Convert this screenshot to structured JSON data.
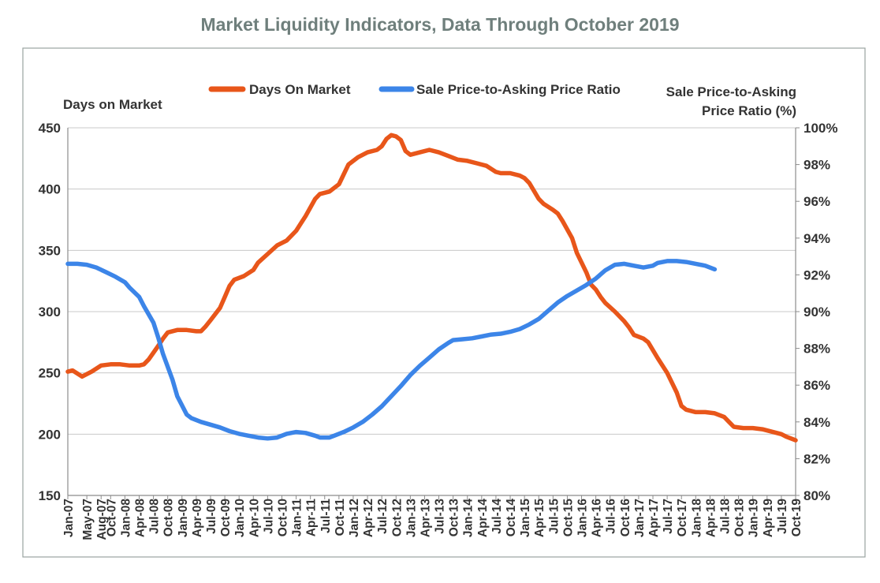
{
  "chart_data": {
    "type": "line",
    "title": "Market Liquidity Indicators, Data Through October 2019",
    "left_axis_label": "Days on Market",
    "right_axis_label": [
      "Sale Price-to-Asking",
      "Price Ratio (%)"
    ],
    "left_ylim": [
      150,
      450
    ],
    "left_ticks": [
      "150",
      "200",
      "250",
      "300",
      "350",
      "400",
      "450"
    ],
    "right_ylim": [
      80,
      100
    ],
    "right_ticks": [
      "80%",
      "82%",
      "84%",
      "86%",
      "88%",
      "90%",
      "92%",
      "94%",
      "96%",
      "98%",
      "100%"
    ],
    "x_range": [
      0,
      153
    ],
    "x_tick_labels": [
      "Jan-07",
      "May-07",
      "Aug-07",
      "Oct-07",
      "Jan-08",
      "Apr-08",
      "Jul-08",
      "Oct-08",
      "Jan-09",
      "Apr-09",
      "Jul-09",
      "Oct-09",
      "Jan-10",
      "Apr-10",
      "Jul-10",
      "Oct-10",
      "Jan-11",
      "Apr-11",
      "Jul-11",
      "Oct-11",
      "Jan-12",
      "Apr-12",
      "Jul-12",
      "Oct-12",
      "Jan-13",
      "Apr-13",
      "Jul-13",
      "Oct-13",
      "Jan-14",
      "Apr-14",
      "Jul-14",
      "Oct-14",
      "Jan-15",
      "Apr-15",
      "Jul-15",
      "Oct-15",
      "Jan-16",
      "Apr-16",
      "Jul-16",
      "Oct-16",
      "Jan-17",
      "Apr-17",
      "Jul-17",
      "Oct-17",
      "Jan-18",
      "Apr-18",
      "Jul-18",
      "Oct-18",
      "Jan-19",
      "Apr-19",
      "Jul-19",
      "Oct-19"
    ],
    "x_tick_months": [
      0,
      4,
      7,
      9,
      12,
      15,
      18,
      21,
      24,
      27,
      30,
      33,
      36,
      39,
      42,
      45,
      48,
      51,
      54,
      57,
      60,
      63,
      66,
      69,
      72,
      75,
      78,
      81,
      84,
      87,
      90,
      93,
      96,
      99,
      102,
      105,
      108,
      111,
      114,
      117,
      120,
      123,
      126,
      129,
      132,
      135,
      138,
      141,
      144,
      147,
      150,
      153
    ],
    "legend": [
      "Days On Market",
      "Sale Price-to-Asking Price Ratio"
    ],
    "series": [
      {
        "name": "Days On Market",
        "axis": "left",
        "color": "#e8561a",
        "points": [
          [
            0,
            251
          ],
          [
            1,
            252
          ],
          [
            3,
            247
          ],
          [
            5,
            251
          ],
          [
            7,
            256
          ],
          [
            9,
            257
          ],
          [
            11,
            257
          ],
          [
            13,
            256
          ],
          [
            15,
            256
          ],
          [
            16,
            257
          ],
          [
            17,
            261
          ],
          [
            19,
            272
          ],
          [
            20,
            278
          ],
          [
            21,
            283
          ],
          [
            23,
            285
          ],
          [
            25,
            285
          ],
          [
            27,
            284
          ],
          [
            28,
            284
          ],
          [
            29,
            288
          ],
          [
            30,
            293
          ],
          [
            32,
            303
          ],
          [
            33,
            312
          ],
          [
            34,
            321
          ],
          [
            35,
            326
          ],
          [
            37,
            329
          ],
          [
            39,
            334
          ],
          [
            40,
            340
          ],
          [
            42,
            347
          ],
          [
            44,
            354
          ],
          [
            46,
            358
          ],
          [
            48,
            366
          ],
          [
            50,
            378
          ],
          [
            52,
            392
          ],
          [
            53,
            396
          ],
          [
            55,
            398
          ],
          [
            57,
            404
          ],
          [
            58,
            412
          ],
          [
            59,
            420
          ],
          [
            61,
            426
          ],
          [
            63,
            430
          ],
          [
            65,
            432
          ],
          [
            66,
            435
          ],
          [
            67,
            441
          ],
          [
            68,
            444
          ],
          [
            69,
            443
          ],
          [
            70,
            440
          ],
          [
            71,
            431
          ],
          [
            72,
            428
          ],
          [
            74,
            430
          ],
          [
            76,
            432
          ],
          [
            78,
            430
          ],
          [
            80,
            427
          ],
          [
            82,
            424
          ],
          [
            84,
            423
          ],
          [
            86,
            421
          ],
          [
            88,
            419
          ],
          [
            90,
            414
          ],
          [
            91,
            413
          ],
          [
            93,
            413
          ],
          [
            95,
            411
          ],
          [
            96,
            409
          ],
          [
            97,
            405
          ],
          [
            99,
            392
          ],
          [
            100,
            388
          ],
          [
            102,
            383
          ],
          [
            103,
            380
          ],
          [
            104,
            374
          ],
          [
            106,
            360
          ],
          [
            107,
            348
          ],
          [
            109,
            332
          ],
          [
            110,
            322
          ],
          [
            111,
            318
          ],
          [
            112,
            312
          ],
          [
            113,
            307
          ],
          [
            115,
            300
          ],
          [
            117,
            292
          ],
          [
            118,
            287
          ],
          [
            119,
            281
          ],
          [
            121,
            278
          ],
          [
            122,
            275
          ],
          [
            124,
            262
          ],
          [
            126,
            250
          ],
          [
            128,
            234
          ],
          [
            129,
            223
          ],
          [
            130,
            220
          ],
          [
            132,
            218
          ],
          [
            134,
            218
          ],
          [
            136,
            217
          ],
          [
            138,
            214
          ],
          [
            139,
            210
          ],
          [
            140,
            206
          ],
          [
            142,
            205
          ],
          [
            144,
            205
          ],
          [
            146,
            204
          ],
          [
            148,
            202
          ],
          [
            150,
            200
          ],
          [
            151,
            198
          ],
          [
            153,
            195
          ]
        ]
      },
      {
        "name": "Sale Price-to-Asking Price Ratio",
        "axis": "right",
        "color": "#3c85e8",
        "points": [
          [
            0,
            92.6
          ],
          [
            2,
            92.6
          ],
          [
            4,
            92.55
          ],
          [
            6,
            92.4
          ],
          [
            8,
            92.15
          ],
          [
            10,
            91.9
          ],
          [
            12,
            91.6
          ],
          [
            13,
            91.3
          ],
          [
            15,
            90.8
          ],
          [
            16,
            90.3
          ],
          [
            18,
            89.4
          ],
          [
            19,
            88.6
          ],
          [
            20,
            87.7
          ],
          [
            22,
            86.3
          ],
          [
            23,
            85.4
          ],
          [
            25,
            84.4
          ],
          [
            26,
            84.2
          ],
          [
            28,
            84.0
          ],
          [
            30,
            83.85
          ],
          [
            32,
            83.7
          ],
          [
            34,
            83.5
          ],
          [
            36,
            83.35
          ],
          [
            38,
            83.25
          ],
          [
            40,
            83.15
          ],
          [
            42,
            83.1
          ],
          [
            44,
            83.15
          ],
          [
            46,
            83.35
          ],
          [
            48,
            83.45
          ],
          [
            50,
            83.4
          ],
          [
            52,
            83.25
          ],
          [
            53,
            83.15
          ],
          [
            55,
            83.15
          ],
          [
            56,
            83.25
          ],
          [
            58,
            83.45
          ],
          [
            60,
            83.7
          ],
          [
            62,
            84.0
          ],
          [
            64,
            84.4
          ],
          [
            66,
            84.85
          ],
          [
            68,
            85.4
          ],
          [
            70,
            85.95
          ],
          [
            72,
            86.55
          ],
          [
            74,
            87.05
          ],
          [
            76,
            87.5
          ],
          [
            78,
            87.95
          ],
          [
            80,
            88.3
          ],
          [
            81,
            88.45
          ],
          [
            83,
            88.5
          ],
          [
            85,
            88.55
          ],
          [
            87,
            88.65
          ],
          [
            89,
            88.75
          ],
          [
            91,
            88.8
          ],
          [
            93,
            88.9
          ],
          [
            95,
            89.05
          ],
          [
            97,
            89.3
          ],
          [
            99,
            89.6
          ],
          [
            101,
            90.05
          ],
          [
            103,
            90.5
          ],
          [
            105,
            90.85
          ],
          [
            107,
            91.15
          ],
          [
            109,
            91.45
          ],
          [
            111,
            91.8
          ],
          [
            113,
            92.25
          ],
          [
            115,
            92.55
          ],
          [
            117,
            92.6
          ],
          [
            119,
            92.5
          ],
          [
            121,
            92.4
          ],
          [
            123,
            92.5
          ],
          [
            124,
            92.65
          ],
          [
            126,
            92.75
          ],
          [
            128,
            92.75
          ],
          [
            130,
            92.7
          ],
          [
            132,
            92.6
          ],
          [
            134,
            92.5
          ],
          [
            136,
            92.3
          ]
        ]
      }
    ]
  }
}
